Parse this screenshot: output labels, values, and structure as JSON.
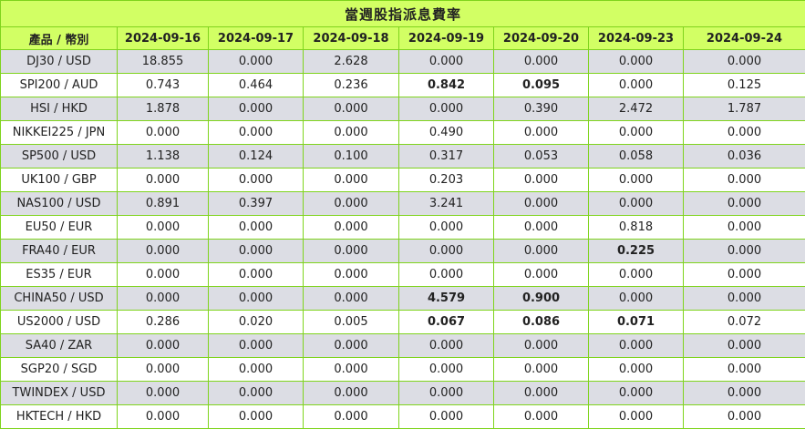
{
  "title": "當週股指派息費率",
  "header": {
    "product_label": "產品 / 幣別",
    "dates": [
      "2024-09-16",
      "2024-09-17",
      "2024-09-18",
      "2024-09-19",
      "2024-09-20",
      "2024-09-23",
      "2024-09-24"
    ]
  },
  "rows": [
    {
      "product": "DJ30 / USD",
      "values": [
        "18.855",
        "0.000",
        "2.628",
        "0.000",
        "0.000",
        "0.000",
        "0.000"
      ],
      "bold": [
        false,
        false,
        false,
        false,
        false,
        false,
        false
      ]
    },
    {
      "product": "SPI200 / AUD",
      "values": [
        "0.743",
        "0.464",
        "0.236",
        "0.842",
        "0.095",
        "0.000",
        "0.125"
      ],
      "bold": [
        false,
        false,
        false,
        true,
        true,
        false,
        false
      ]
    },
    {
      "product": "HSI / HKD",
      "values": [
        "1.878",
        "0.000",
        "0.000",
        "0.000",
        "0.390",
        "2.472",
        "1.787"
      ],
      "bold": [
        false,
        false,
        false,
        false,
        false,
        false,
        false
      ]
    },
    {
      "product": "NIKKEI225 / JPN",
      "values": [
        "0.000",
        "0.000",
        "0.000",
        "0.490",
        "0.000",
        "0.000",
        "0.000"
      ],
      "bold": [
        false,
        false,
        false,
        false,
        false,
        false,
        false
      ]
    },
    {
      "product": "SP500 / USD",
      "values": [
        "1.138",
        "0.124",
        "0.100",
        "0.317",
        "0.053",
        "0.058",
        "0.036"
      ],
      "bold": [
        false,
        false,
        false,
        false,
        false,
        false,
        false
      ]
    },
    {
      "product": "UK100 / GBP",
      "values": [
        "0.000",
        "0.000",
        "0.000",
        "0.203",
        "0.000",
        "0.000",
        "0.000"
      ],
      "bold": [
        false,
        false,
        false,
        false,
        false,
        false,
        false
      ]
    },
    {
      "product": "NAS100 / USD",
      "values": [
        "0.891",
        "0.397",
        "0.000",
        "3.241",
        "0.000",
        "0.000",
        "0.000"
      ],
      "bold": [
        false,
        false,
        false,
        false,
        false,
        false,
        false
      ]
    },
    {
      "product": "EU50 / EUR",
      "values": [
        "0.000",
        "0.000",
        "0.000",
        "0.000",
        "0.000",
        "0.818",
        "0.000"
      ],
      "bold": [
        false,
        false,
        false,
        false,
        false,
        false,
        false
      ]
    },
    {
      "product": "FRA40 / EUR",
      "values": [
        "0.000",
        "0.000",
        "0.000",
        "0.000",
        "0.000",
        "0.225",
        "0.000"
      ],
      "bold": [
        false,
        false,
        false,
        false,
        false,
        true,
        false
      ]
    },
    {
      "product": "ES35 / EUR",
      "values": [
        "0.000",
        "0.000",
        "0.000",
        "0.000",
        "0.000",
        "0.000",
        "0.000"
      ],
      "bold": [
        false,
        false,
        false,
        false,
        false,
        false,
        false
      ]
    },
    {
      "product": "CHINA50 / USD",
      "values": [
        "0.000",
        "0.000",
        "0.000",
        "4.579",
        "0.900",
        "0.000",
        "0.000"
      ],
      "bold": [
        false,
        false,
        false,
        true,
        true,
        false,
        false
      ]
    },
    {
      "product": "US2000 / USD",
      "values": [
        "0.286",
        "0.020",
        "0.005",
        "0.067",
        "0.086",
        "0.071",
        "0.072"
      ],
      "bold": [
        false,
        false,
        false,
        true,
        true,
        true,
        false
      ]
    },
    {
      "product": "SA40 / ZAR",
      "values": [
        "0.000",
        "0.000",
        "0.000",
        "0.000",
        "0.000",
        "0.000",
        "0.000"
      ],
      "bold": [
        false,
        false,
        false,
        false,
        false,
        false,
        false
      ]
    },
    {
      "product": "SGP20 / SGD",
      "values": [
        "0.000",
        "0.000",
        "0.000",
        "0.000",
        "0.000",
        "0.000",
        "0.000"
      ],
      "bold": [
        false,
        false,
        false,
        false,
        false,
        false,
        false
      ]
    },
    {
      "product": "TWINDEX / USD",
      "values": [
        "0.000",
        "0.000",
        "0.000",
        "0.000",
        "0.000",
        "0.000",
        "0.000"
      ],
      "bold": [
        false,
        false,
        false,
        false,
        false,
        false,
        false
      ]
    },
    {
      "product": "HKTECH / HKD",
      "values": [
        "0.000",
        "0.000",
        "0.000",
        "0.000",
        "0.000",
        "0.000",
        "0.000"
      ],
      "bold": [
        false,
        false,
        false,
        false,
        false,
        false,
        false
      ]
    }
  ],
  "colors": {
    "header_bg": "#d2ff64",
    "border": "#7fd41d",
    "row_shade": "#dcdde4",
    "row_plain": "#ffffff"
  }
}
